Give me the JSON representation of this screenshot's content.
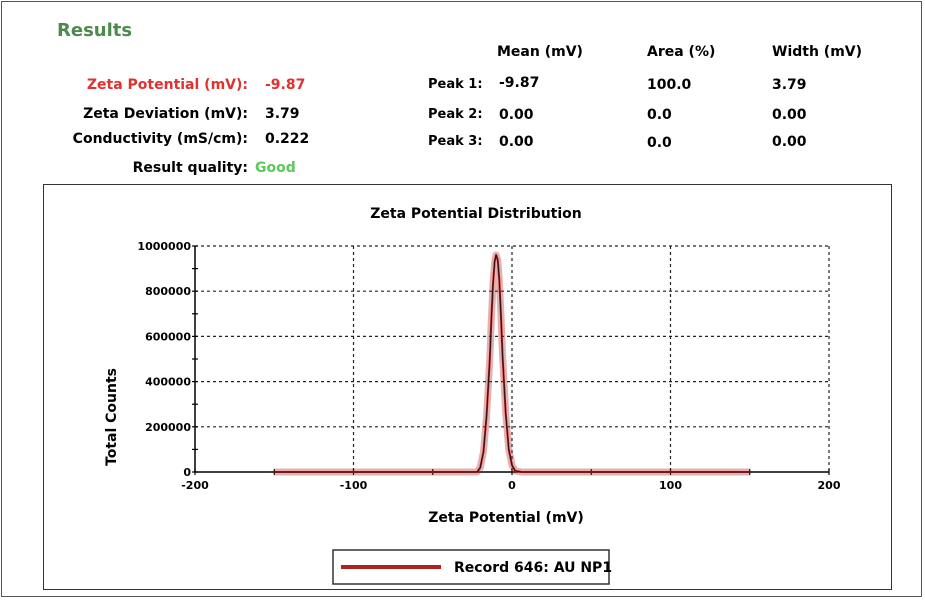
{
  "header": {
    "title": "Results"
  },
  "summary": {
    "zeta_potential_label": "Zeta Potential (mV):",
    "zeta_potential_value": "-9.87",
    "zeta_deviation_label": "Zeta Deviation (mV):",
    "zeta_deviation_value": "3.79",
    "conductivity_label": "Conductivity (mS/cm):",
    "conductivity_value": "0.222",
    "quality_label": "Result quality:",
    "quality_value": "Good"
  },
  "peaks": {
    "columns": [
      "Mean (mV)",
      "Area (%)",
      "Width (mV)"
    ],
    "rows": [
      {
        "label": "Peak 1:",
        "mean": "-9.87",
        "area": "100.0",
        "width": "3.79"
      },
      {
        "label": "Peak 2:",
        "mean": "0.00",
        "area": "0.0",
        "width": "0.00"
      },
      {
        "label": "Peak 3:",
        "mean": "0.00",
        "area": "0.0",
        "width": "0.00"
      }
    ]
  },
  "colors": {
    "series": "#b02020",
    "title_green": "#4e8a4e",
    "highlight_red": "#e03030",
    "good_green": "#5cc85c"
  },
  "chart_data": {
    "type": "line",
    "title": "Zeta Potential Distribution",
    "xlabel": "Zeta Potential (mV)",
    "ylabel": "Total Counts",
    "xlim": [
      -200,
      200
    ],
    "ylim": [
      0,
      1000000
    ],
    "xticks": [
      -200,
      -100,
      0,
      100,
      200
    ],
    "xtick_labels": [
      "-200",
      "-100",
      "0",
      "100",
      "200"
    ],
    "yticks": [
      0,
      200000,
      400000,
      600000,
      800000,
      1000000
    ],
    "ytick_labels": [
      "0",
      "200000",
      "400000",
      "600000",
      "800000",
      "1000000"
    ],
    "grid": true,
    "legend_position": "bottom-center",
    "series": [
      {
        "name": "Record 646: AU NP1",
        "x": [
          -150,
          -30,
          -22,
          -20,
          -18,
          -16,
          -14,
          -13,
          -12,
          -11,
          -10,
          -9,
          -8,
          -7,
          -6,
          -4,
          -2,
          0,
          2,
          6,
          10,
          30,
          150
        ],
        "y": [
          0,
          0,
          0,
          20000,
          90000,
          250000,
          500000,
          680000,
          830000,
          930000,
          960000,
          940000,
          850000,
          700000,
          520000,
          260000,
          100000,
          30000,
          5000,
          0,
          0,
          0,
          0
        ]
      }
    ]
  }
}
